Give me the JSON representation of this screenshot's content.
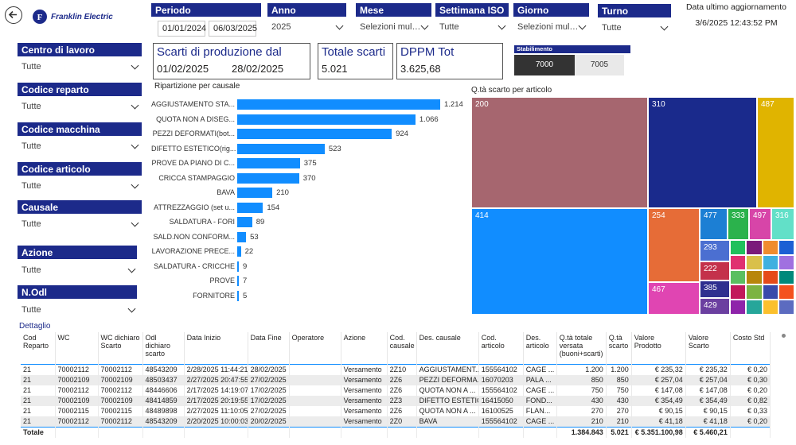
{
  "header": {
    "brand_name": "Franklin Electric",
    "last_update_label": "Data ultimo aggiornamento",
    "last_update_value": "3/6/2025 12:43:52 PM"
  },
  "filters_top": {
    "periodo": {
      "label": "Periodo",
      "from": "01/01/2024",
      "to": "06/03/2025"
    },
    "anno": {
      "label": "Anno",
      "value": "2025"
    },
    "mese": {
      "label": "Mese",
      "value": "Selezioni multi..."
    },
    "settimana": {
      "label": "Settimana ISO",
      "value": "Tutte"
    },
    "giorno": {
      "label": "Giorno",
      "value": "Selezioni multi..."
    },
    "turno": {
      "label": "Turno",
      "value": "Tutte"
    }
  },
  "filters_side": [
    {
      "label": "Centro di lavoro",
      "value": "Tutte"
    },
    {
      "label": "Codice reparto",
      "value": "Tutte"
    },
    {
      "label": "Codice macchina",
      "value": "Tutte"
    },
    {
      "label": "Codice articolo",
      "value": "Tutte"
    },
    {
      "label": "Causale",
      "value": "Tutte"
    },
    {
      "label": "Azione",
      "value": "Tutte"
    },
    {
      "label": "N.Odl",
      "value": "Tutte"
    }
  ],
  "cards": {
    "scarti": {
      "title": "Scarti di produzione dal",
      "from": "01/02/2025",
      "to": "28/02/2025"
    },
    "totale": {
      "title": "Totale scarti",
      "value": "5.021"
    },
    "dppm": {
      "title": "DPPM Tot",
      "value": "3.625,68"
    }
  },
  "stabilimento": {
    "label": "Stabilimento",
    "options": [
      {
        "label": "7000",
        "selected": true
      },
      {
        "label": "7005",
        "selected": false
      }
    ]
  },
  "chart_data": [
    {
      "type": "bar",
      "orientation": "horizontal",
      "title": "Ripartizione per causale",
      "categories": [
        "AGGIUSTAMENTO STA...",
        "QUOTA NON A DISEG...",
        "PEZZI DEFORMATI(bot...",
        "DIFETTO ESTETICO(rig...",
        "PROVE DA PIANO DI C...",
        "CRICCA STAMPAGGIO",
        "BAVA",
        "ATTREZZAGGIO (set u...",
        "SALDATURA - FORI",
        "SALD.NON CONFORM...",
        "LAVORAZIONE PRECE...",
        "SALDATURA - CRICCHE",
        "PROVE",
        "FORNITORE"
      ],
      "values": [
        1214,
        1066,
        924,
        523,
        375,
        370,
        210,
        154,
        89,
        53,
        22,
        9,
        7,
        5
      ],
      "value_labels": [
        "1.214",
        "1.066",
        "924",
        "523",
        "375",
        "370",
        "210",
        "154",
        "89",
        "53",
        "22",
        "9",
        "7",
        "5"
      ],
      "color": "#118dff"
    },
    {
      "type": "treemap",
      "title": "Q.tà scarto per articolo",
      "values": [
        200,
        310,
        487,
        414,
        254,
        477,
        333,
        497,
        316,
        293,
        222,
        467,
        385,
        429
      ],
      "colors": [
        "#a6666f",
        "#1a2a8c",
        "#e0b400",
        "#118dff",
        "#e66c37",
        "#1c7fd4",
        "#2bb24c",
        "#d745a8",
        "#62e0c8",
        "#4b6fd1",
        "#c4314b",
        "#e045b2",
        "#2f2f8f",
        "#6b3fa0"
      ]
    }
  ],
  "treemap_small_colors": [
    "#20c05c",
    "#7a1a7a",
    "#f08c2e",
    "#1c5fd4",
    "#e03070",
    "#d9c04a",
    "#3fb0e0",
    "#a070e0",
    "#5abf60",
    "#b8860b",
    "#e64a19",
    "#00897b",
    "#c2185b",
    "#7cb342",
    "#3949ab",
    "#f4511e",
    "#8e24aa",
    "#26a69a",
    "#fbc02d",
    "#5c6bc0"
  ],
  "table": {
    "title": "Dettaglio",
    "columns": [
      "Cod Reparto",
      "WC",
      "WC dichiaro Scarto",
      "Odl dichiaro scarto",
      "Data Inizio",
      "Data Fine",
      "Operatore",
      "Azione",
      "Cod. causale",
      "Des. causale",
      "Cod. articolo",
      "Des. articolo",
      "Q.tà totale versata (buoni+scarti)",
      "Q.tà scarto",
      "Valore Prodotto",
      "Valore Scarto",
      "Costo Std"
    ],
    "rows": [
      [
        "21",
        "70002112",
        "70002112",
        "48543209",
        "2/28/2025 11:44:21",
        "28/02/2025",
        "",
        "Versamento",
        "2Z10",
        "AGGIUSTAMENT...",
        "155564102",
        "CAGE ...",
        "1.200",
        "1.200",
        "€ 235,32",
        "€ 235,32",
        "€ 0,20"
      ],
      [
        "21",
        "70002109",
        "70002109",
        "48503437",
        "2/27/2025 20:47:55",
        "27/02/2025",
        "",
        "Versamento",
        "2Z6",
        "PEZZI DEFORMA...",
        "16070203",
        "PALA ...",
        "850",
        "850",
        "€ 257,04",
        "€ 257,04",
        "€ 0,30"
      ],
      [
        "21",
        "70002112",
        "70002112",
        "48446606",
        "2/17/2025 14:19:07",
        "17/02/2025",
        "",
        "Versamento",
        "2Z6",
        "QUOTA NON A ...",
        "155564102",
        "CAGE ...",
        "750",
        "750",
        "€ 147,08",
        "€ 147,08",
        "€ 0,20"
      ],
      [
        "21",
        "70002109",
        "70002109",
        "48414859",
        "2/17/2025 20:19:55",
        "17/02/2025",
        "",
        "Versamento",
        "2Z3",
        "DIFETTO ESTETIC...",
        "16415050",
        "FOND...",
        "430",
        "430",
        "€ 354,49",
        "€ 354,49",
        "€ 0,82"
      ],
      [
        "21",
        "70002115",
        "70002115",
        "48489898",
        "2/27/2025 11:10:05",
        "27/02/2025",
        "",
        "Versamento",
        "2Z6",
        "QUOTA NON A ...",
        "16100525",
        "FLAN...",
        "270",
        "270",
        "€ 90,15",
        "€ 90,15",
        "€ 0,33"
      ],
      [
        "21",
        "70002112",
        "70002112",
        "48543209",
        "2/20/2025 10:00:03",
        "20/02/2025",
        "",
        "Versamento",
        "2Z0",
        "BAVA",
        "155564102",
        "CAGE ...",
        "210",
        "210",
        "€ 41,18",
        "€ 41,18",
        "€ 0,20"
      ]
    ],
    "total": {
      "label": "Totale",
      "qta_totale": "1.384.843",
      "qta_scarto": "5.021",
      "valore_prodotto": "€ 5.351.100,98",
      "valore_scarto": "€ 5.460,21"
    }
  }
}
